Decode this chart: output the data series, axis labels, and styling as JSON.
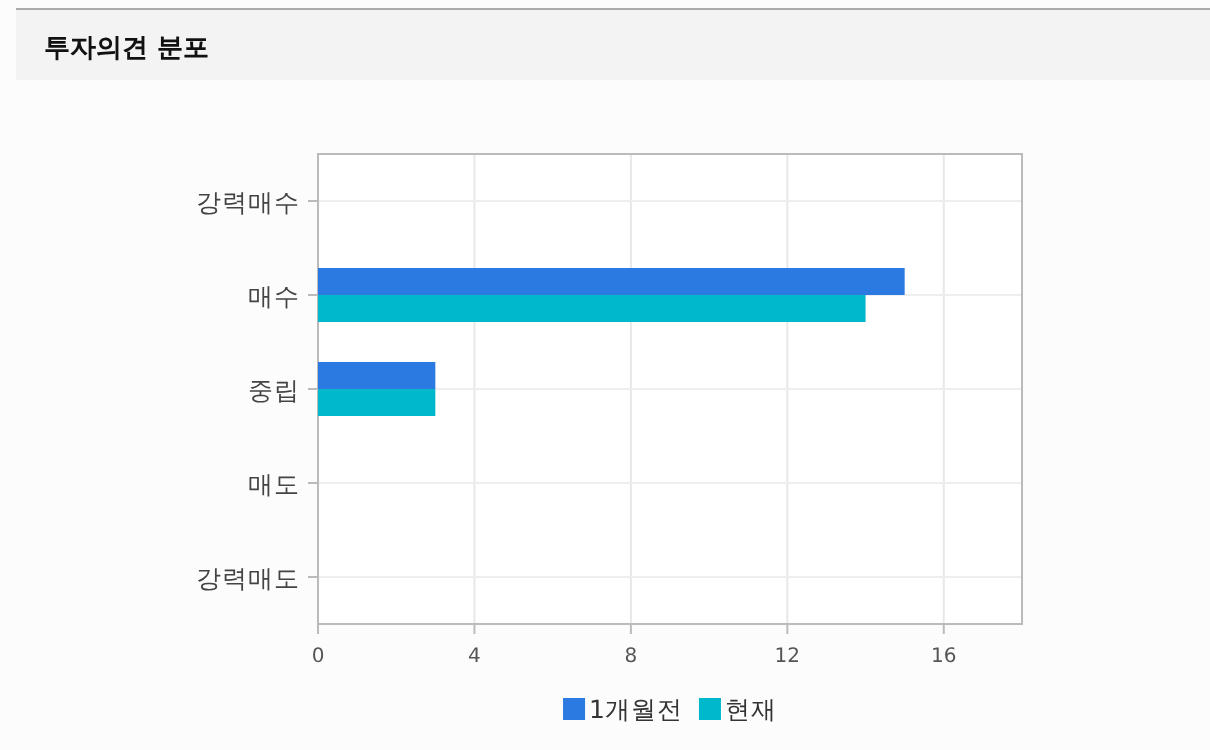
{
  "chart_data": {
    "type": "bar",
    "orientation": "horizontal",
    "title": "투자의견 분포",
    "categories": [
      "강력매수",
      "매수",
      "중립",
      "매도",
      "강력매도"
    ],
    "series": [
      {
        "name": "1개월전",
        "color": "#2a7ae2",
        "values": [
          0,
          15,
          3,
          0,
          0
        ]
      },
      {
        "name": "현재",
        "color": "#00b8cc",
        "values": [
          0,
          14,
          3,
          0,
          0
        ]
      }
    ],
    "xlim": [
      0,
      18
    ],
    "xticks": [
      0,
      4,
      8,
      12,
      16
    ],
    "grid": true,
    "legend": "bottom"
  }
}
